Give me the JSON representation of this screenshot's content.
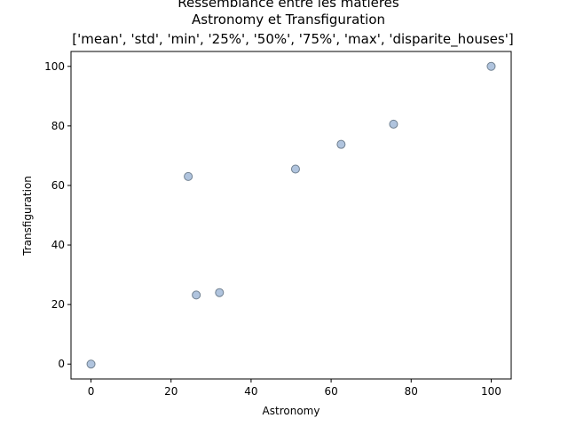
{
  "chart_data": {
    "type": "scatter",
    "title_lines": [
      "Ressemblance entre les matieres",
      "Astronomy et Transfiguration",
      "['mean', 'std', 'min', '25%', '50%', '75%', 'max', 'disparite_houses']"
    ],
    "xlabel": "Astronomy",
    "ylabel": "Transfiguration",
    "xlim": [
      -5,
      105
    ],
    "ylim": [
      -5,
      105
    ],
    "xticks": [
      0,
      20,
      40,
      60,
      80,
      100
    ],
    "yticks": [
      0,
      20,
      40,
      60,
      80,
      100
    ],
    "grid": false,
    "marker_fill": "#b0c4de",
    "marker_edge": "#708090",
    "points": [
      {
        "x": 0,
        "y": 0
      },
      {
        "x": 24.3,
        "y": 63
      },
      {
        "x": 26.3,
        "y": 23.2
      },
      {
        "x": 32.1,
        "y": 24
      },
      {
        "x": 51.1,
        "y": 65.5
      },
      {
        "x": 62.5,
        "y": 73.8
      },
      {
        "x": 75.6,
        "y": 80.6
      },
      {
        "x": 100,
        "y": 100
      }
    ]
  }
}
